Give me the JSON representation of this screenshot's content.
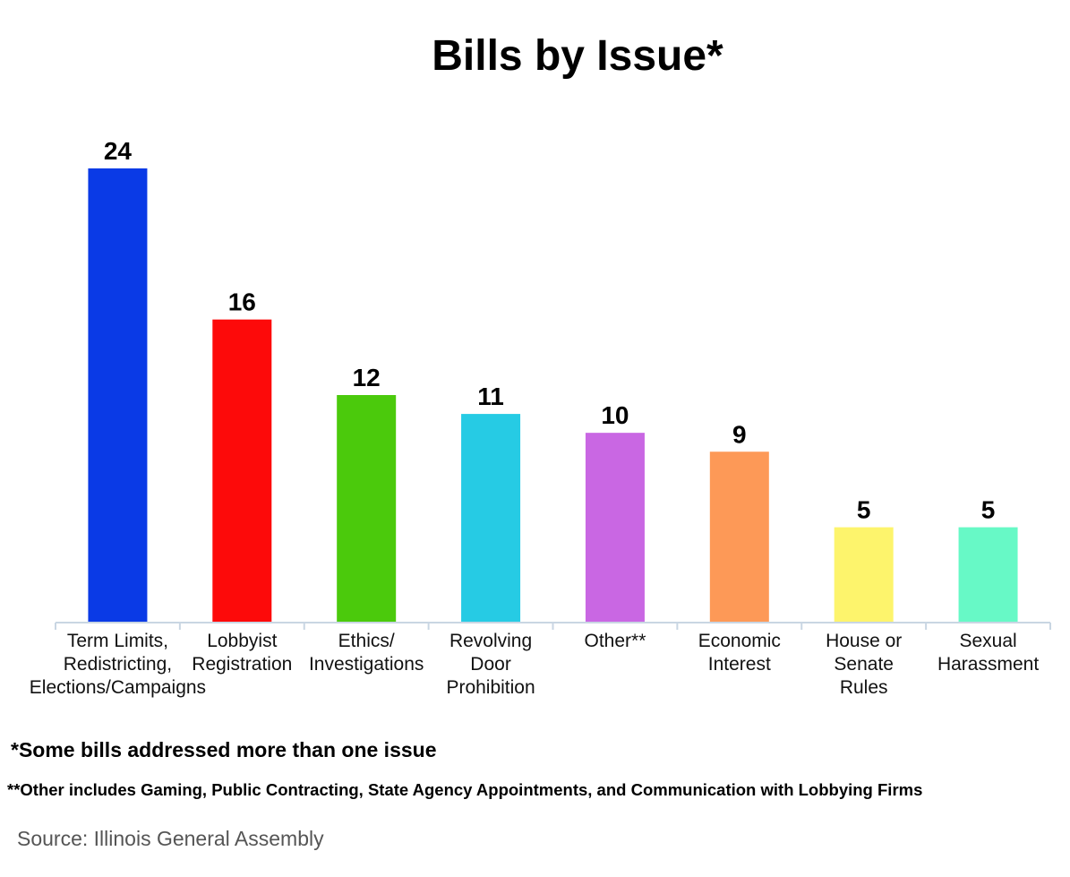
{
  "chart_data": {
    "type": "bar",
    "title": "Bills by Issue*",
    "categories": [
      [
        "Term Limits,",
        "Redistricting,",
        "Elections/Campaigns"
      ],
      [
        "Lobbyist",
        "Registration"
      ],
      [
        "Ethics/",
        "Investigations"
      ],
      [
        "Revolving",
        "Door",
        "Prohibition"
      ],
      [
        "Other**"
      ],
      [
        "Economic",
        "Interest"
      ],
      [
        "House or",
        "Senate",
        "Rules"
      ],
      [
        "Sexual",
        "Harassment"
      ]
    ],
    "values": [
      24,
      16,
      12,
      11,
      10,
      9,
      5,
      5
    ],
    "colors": [
      "#0a3ae6",
      "#fd0a0a",
      "#4bca0c",
      "#26cbe4",
      "#c967e3",
      "#fd9957",
      "#fdf46c",
      "#67f9c6"
    ],
    "ylim": [
      0,
      24
    ],
    "grid": false,
    "legend": "none",
    "xlabel": "",
    "ylabel": ""
  },
  "footnotes": {
    "note1": "*Some bills addressed more than one issue",
    "note2": "**Other includes Gaming, Public Contracting, State Agency Appointments, and Communication with Lobbying Firms"
  },
  "source": "Source: Illinois General Assembly"
}
